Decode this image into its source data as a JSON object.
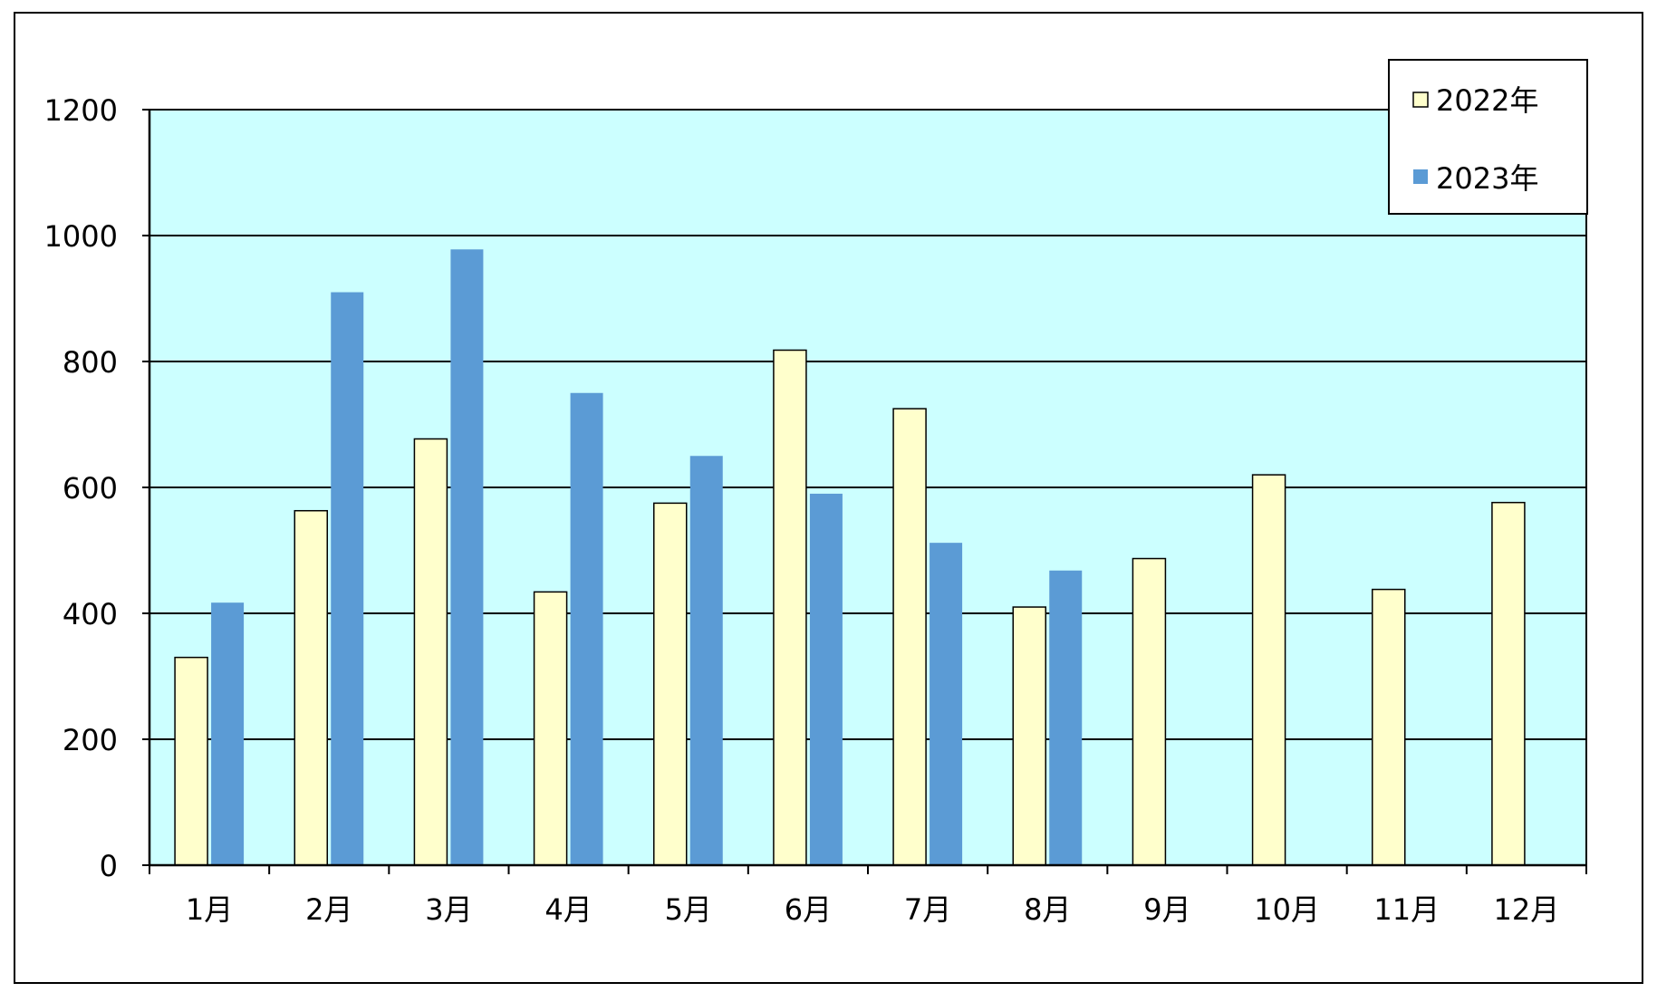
{
  "chart_data": {
    "type": "bar",
    "title": "",
    "xlabel": "",
    "ylabel": "",
    "categories": [
      "1月",
      "2月",
      "3月",
      "4月",
      "5月",
      "6月",
      "7月",
      "8月",
      "9月",
      "10月",
      "11月",
      "12月"
    ],
    "series": [
      {
        "name": "2022年",
        "color": "#ffffcc",
        "values": [
          330,
          563,
          677,
          434,
          575,
          818,
          725,
          410,
          487,
          620,
          438,
          576
        ]
      },
      {
        "name": "2023年",
        "color": "#5b9bd5",
        "values": [
          417,
          910,
          978,
          750,
          650,
          590,
          512,
          468,
          null,
          null,
          null,
          null
        ]
      }
    ],
    "ylim": [
      0,
      1200
    ],
    "yticks": [
      0,
      200,
      400,
      600,
      800,
      1000,
      1200
    ],
    "grid": true,
    "legend": "top-right",
    "plot_background": "#ccffff"
  }
}
